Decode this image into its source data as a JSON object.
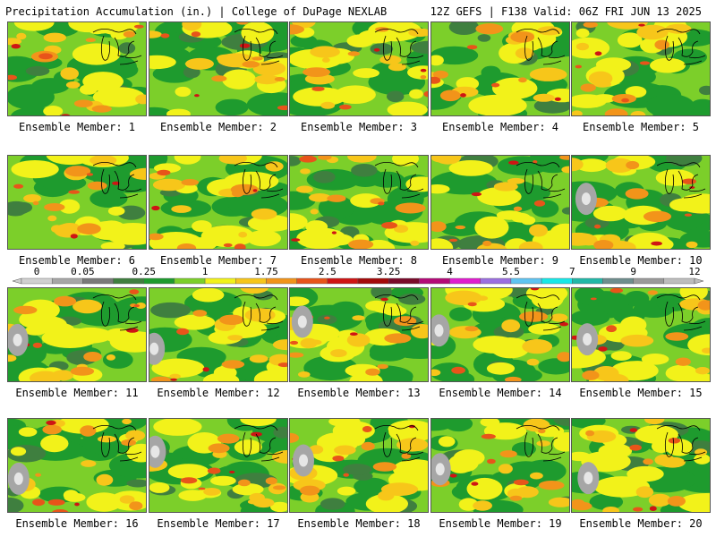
{
  "header": {
    "left": "Precipitation Accumulation (in.) | College of DuPage NEXLAB",
    "right": "12Z GEFS | F138 Valid: 06Z FRI JUN 13 2025"
  },
  "colorbar": {
    "labels": [
      "0",
      "0.05",
      "0.25",
      "1",
      "1.75",
      "2.5",
      "3.25",
      "4",
      "5.5",
      "7",
      "9",
      "12"
    ],
    "colors": [
      "#d0d0d0",
      "#a6a6a6",
      "#7a7a7a",
      "#3f7f3f",
      "#1e9b2e",
      "#7ccf2a",
      "#f2f21a",
      "#f7c61a",
      "#f2941a",
      "#e8541a",
      "#cf1414",
      "#a40a0a",
      "#7a0a2a",
      "#b40a78",
      "#e01ecf",
      "#9b6fe0",
      "#5fc4f2",
      "#18e8e8",
      "#22b8a8",
      "#6e8e8e",
      "#9a9a9a",
      "#bdbdbd"
    ]
  },
  "panels": [
    {
      "caption": "Ensemble Member: 1"
    },
    {
      "caption": "Ensemble Member: 2"
    },
    {
      "caption": "Ensemble Member: 3"
    },
    {
      "caption": "Ensemble Member: 4"
    },
    {
      "caption": "Ensemble Member: 5"
    },
    {
      "caption": "Ensemble Member: 6"
    },
    {
      "caption": "Ensemble Member: 7"
    },
    {
      "caption": "Ensemble Member: 8"
    },
    {
      "caption": "Ensemble Member: 9"
    },
    {
      "caption": "Ensemble Member: 10"
    },
    {
      "caption": "Ensemble Member: 11"
    },
    {
      "caption": "Ensemble Member: 12"
    },
    {
      "caption": "Ensemble Member: 13"
    },
    {
      "caption": "Ensemble Member: 14"
    },
    {
      "caption": "Ensemble Member: 15"
    },
    {
      "caption": "Ensemble Member: 16"
    },
    {
      "caption": "Ensemble Member: 17"
    },
    {
      "caption": "Ensemble Member: 18"
    },
    {
      "caption": "Ensemble Member: 19"
    },
    {
      "caption": "Ensemble Member: 20"
    }
  ]
}
